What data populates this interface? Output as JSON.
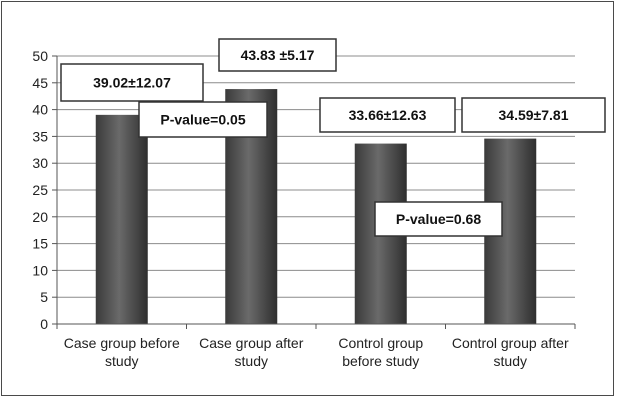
{
  "chart_data": {
    "type": "bar",
    "categories": [
      [
        "Case group before",
        "study"
      ],
      [
        "Case group after",
        "study"
      ],
      [
        "Control group",
        "before study"
      ],
      [
        "Control group after",
        "study"
      ]
    ],
    "values": [
      39.02,
      43.83,
      33.66,
      34.59
    ],
    "value_labels": [
      "39.02±12.07",
      "43.83 ±5.17",
      "33.66±12.63",
      "34.59±7.81"
    ],
    "annotations": [
      "P-value=0.05",
      "P-value=0.68"
    ],
    "ylim": [
      0,
      50
    ],
    "yticks": [
      0,
      5,
      10,
      15,
      20,
      25,
      30,
      35,
      40,
      45,
      50
    ],
    "grid": true,
    "legend": "none",
    "bar_color": "#555555",
    "title": "",
    "xlabel": "",
    "ylabel": ""
  }
}
